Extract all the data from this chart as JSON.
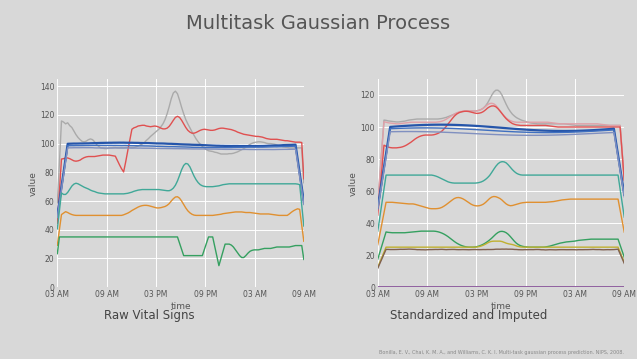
{
  "title": "Multitask Gaussian Process",
  "subtitle_left": "Raw Vital Signs",
  "subtitle_right": "Standardized and Imputed",
  "xlabel": "time",
  "ylabel": "value",
  "xtick_labels": [
    "03 AM",
    "09 AM",
    "03 PM",
    "09 PM",
    "03 AM",
    "09 AM"
  ],
  "background_color": "#d8d8d8",
  "plot_bg_color": "#d8d8d8",
  "title_color": "#555555",
  "subtitle_color": "#444444",
  "grid_color": "#ffffff",
  "n_points": 120,
  "left_ylim": [
    0,
    145
  ],
  "right_ylim": [
    0,
    130
  ],
  "left_yticks": [
    0,
    20,
    40,
    60,
    80,
    100,
    120,
    140
  ],
  "right_yticks": [
    0,
    20,
    40,
    60,
    80,
    100,
    120
  ],
  "citation": "Bonilla, E. V., Chai, K. M. A., and Williams, C. K. I. Multi-task gaussian process prediction. NIPS, 2008."
}
